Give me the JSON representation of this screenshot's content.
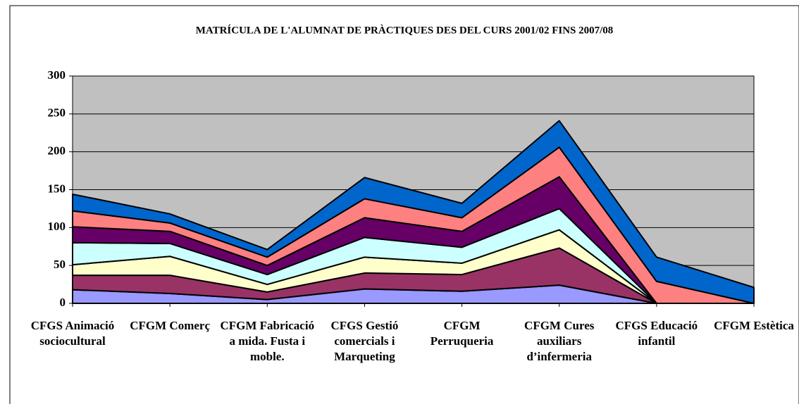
{
  "chart_data": {
    "type": "stacked_area",
    "title": "MATRÍCULA DE L'ALUMNAT DE PRÀCTIQUES DES DEL CURS 2001/02 FINS 2007/08",
    "categories": [
      "CFGS Animació sociocultural",
      "CFGM Comerç",
      "CFGM Fabricació a mida. Fusta i moble.",
      "CFGS Gestió comercials i Marqueting",
      "CFGM Perruqueria",
      "CFGM Cures auxiliars d’infermeria",
      "CFGS Educació infantil",
      "CFGM Estètica"
    ],
    "series": [
      {
        "color": "#9999ff",
        "values": [
          18,
          13,
          5,
          19,
          16,
          24,
          0,
          0
        ]
      },
      {
        "color": "#993366",
        "values": [
          19,
          24,
          10,
          21,
          22,
          49,
          0,
          0
        ]
      },
      {
        "color": "#ffffcc",
        "values": [
          14,
          25,
          10,
          21,
          15,
          24,
          0,
          0
        ]
      },
      {
        "color": "#ccffff",
        "values": [
          29,
          17,
          13,
          26,
          21,
          28,
          0,
          0
        ]
      },
      {
        "color": "#660066",
        "values": [
          21,
          16,
          12,
          26,
          21,
          42,
          0,
          0
        ]
      },
      {
        "color": "#ff8080",
        "values": [
          21,
          11,
          11,
          25,
          18,
          39,
          29,
          0
        ]
      },
      {
        "color": "#0066cc",
        "values": [
          22,
          12,
          10,
          28,
          19,
          35,
          32,
          21
        ]
      }
    ],
    "ylim": [
      0,
      300
    ],
    "yticks": [
      0,
      50,
      100,
      150,
      200,
      250,
      300
    ],
    "grid": true,
    "plot_background": "#c0c0c0"
  }
}
